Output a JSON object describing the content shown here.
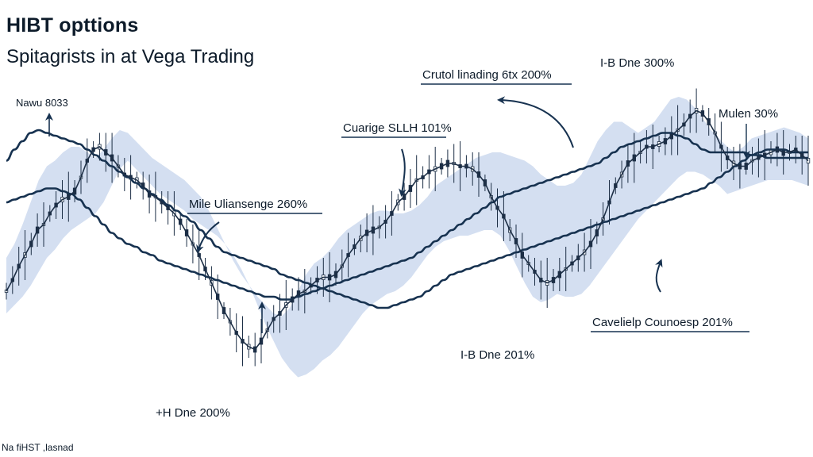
{
  "title": "HIBT opttions",
  "subtitle": "Spitagrists in at Vega Trading",
  "footer": "Na fiHST ,lasnad",
  "colors": {
    "band": "#cdd9ee",
    "line": "#173250",
    "candle": "#1d2f46",
    "text": "#0d1b2a"
  },
  "chart_data": {
    "type": "line",
    "title": "HIBT opttions",
    "subtitle": "Spitagrists in at Vega Trading",
    "xlabel": "",
    "ylabel": "",
    "grid": false,
    "legend": "none",
    "series": [
      {
        "role": "price",
        "values": [
          38,
          42,
          47,
          51,
          55,
          60,
          62,
          66,
          69,
          71,
          72,
          74,
          79,
          85,
          89,
          90,
          88,
          86,
          83,
          80,
          79,
          78,
          76,
          73,
          72,
          70,
          68,
          66,
          63,
          59,
          55,
          51,
          46,
          41,
          36,
          31,
          27,
          23,
          20,
          18,
          17,
          20,
          24,
          28,
          30,
          33,
          35,
          37,
          38,
          40,
          42,
          43,
          43,
          44,
          47,
          51,
          54,
          57,
          59,
          60,
          61,
          63,
          66,
          70,
          72,
          75,
          78,
          79,
          81,
          82,
          83,
          84,
          84,
          83,
          83,
          82,
          80,
          77,
          72,
          68,
          65,
          60,
          56,
          51,
          48,
          45,
          42,
          41,
          42,
          44,
          46,
          48,
          50,
          52,
          55,
          59,
          64,
          70,
          76,
          80,
          84,
          86,
          88,
          90,
          90,
          91,
          92,
          94,
          96,
          98,
          101,
          103,
          102,
          99,
          95,
          90,
          86,
          84,
          83,
          83,
          85,
          86,
          87,
          88,
          89,
          88,
          88,
          89,
          87,
          85
        ]
      },
      {
        "role": "upper-band",
        "values": [
          50,
          55,
          62,
          70,
          78,
          83,
          85,
          88,
          90,
          90,
          88,
          86,
          89,
          93,
          96,
          95,
          92,
          89,
          86,
          84,
          82,
          80,
          78,
          75,
          72,
          67,
          61,
          55,
          49,
          44,
          40,
          36,
          33,
          30,
          29,
          32,
          38,
          44,
          48,
          50,
          53,
          57,
          60,
          62,
          64,
          66,
          67,
          67,
          66,
          66,
          67,
          69,
          72,
          76,
          78,
          80,
          82,
          84,
          86,
          87,
          88,
          88,
          87,
          86,
          85,
          83,
          80,
          78,
          76,
          76,
          77,
          80,
          86,
          92,
          96,
          99,
          99,
          97,
          95,
          97,
          99,
          103,
          107,
          108,
          107,
          104,
          100,
          96,
          93,
          90,
          88,
          90,
          93,
          94,
          95,
          96,
          97,
          96,
          95,
          93
        ]
      },
      {
        "role": "lower-band",
        "values": [
          30,
          33,
          36,
          40,
          45,
          50,
          53,
          57,
          60,
          62,
          64,
          66,
          70,
          76,
          82,
          85,
          82,
          79,
          76,
          73,
          71,
          69,
          67,
          64,
          62,
          60,
          58,
          55,
          51,
          46,
          40,
          33,
          26,
          20,
          14,
          10,
          7,
          8,
          10,
          13,
          15,
          18,
          22,
          26,
          30,
          33,
          35,
          37,
          38,
          40,
          43,
          47,
          51,
          54,
          56,
          57,
          58,
          58,
          59,
          60,
          60,
          58,
          53,
          47,
          41,
          36,
          34,
          35,
          37,
          36,
          36,
          37,
          40,
          44,
          48,
          52,
          56,
          60,
          64,
          67,
          70,
          73,
          76,
          79,
          81,
          81,
          80,
          78,
          76,
          73,
          74,
          75,
          76,
          77,
          78,
          78,
          78,
          78,
          77,
          76
        ]
      },
      {
        "role": "average-1",
        "values": [
          70,
          71,
          72,
          73,
          74,
          75,
          75,
          74,
          73,
          71,
          68,
          65,
          62,
          59,
          57,
          55,
          54,
          52,
          51,
          49,
          48,
          47,
          46,
          45,
          44,
          43,
          42,
          41,
          40,
          39,
          38,
          37,
          36,
          36,
          35,
          35,
          36,
          37,
          38,
          39,
          40,
          41,
          42,
          43,
          44,
          45,
          46,
          47,
          48,
          49,
          50,
          52,
          54,
          56,
          58,
          60,
          62,
          64,
          66,
          68,
          70,
          72,
          73,
          74,
          75,
          76,
          77,
          78,
          79,
          80,
          81,
          82,
          83,
          84,
          86,
          88,
          90,
          91,
          92,
          93,
          94,
          95,
          95,
          94,
          93,
          91,
          89,
          88,
          88,
          88,
          88,
          88,
          87,
          87,
          86,
          86,
          86,
          86,
          86,
          86
        ]
      },
      {
        "role": "average-2",
        "values": [
          85,
          89,
          92,
          95,
          96,
          95,
          94,
          93,
          92,
          91,
          89,
          87,
          85,
          83,
          81,
          79,
          77,
          75,
          73,
          71,
          69,
          67,
          65,
          63,
          60,
          57,
          54,
          52,
          51,
          50,
          49,
          48,
          47,
          46,
          44,
          43,
          42,
          41,
          40,
          39,
          38,
          37,
          36,
          35,
          34,
          33,
          32,
          32,
          33,
          34,
          35,
          36,
          38,
          40,
          42,
          44,
          45,
          46,
          47,
          48,
          49,
          50,
          51,
          52,
          53,
          54,
          55,
          56,
          57,
          58,
          59,
          60,
          61,
          62,
          63,
          64,
          65,
          66,
          67,
          68,
          69,
          70,
          71,
          72,
          73,
          74,
          75,
          77,
          79,
          81,
          83,
          85,
          87,
          88,
          89,
          89,
          89,
          88,
          88,
          88
        ]
      }
    ],
    "ylim": [
      0,
      120
    ],
    "annotations": [
      {
        "label": "Nawu 8033",
        "series_index": 8,
        "arrow": "up"
      },
      {
        "label": "Crutol linading 6tx 200%",
        "arrow": "curved-left"
      },
      {
        "label": "Cuarige SLLH 101%",
        "arrow": "down",
        "boxed": true
      },
      {
        "label": "Mile Uliansenge 260%",
        "arrow": "curved-down",
        "boxed": true
      },
      {
        "label": "I-B Dne 300%",
        "arrow": "none"
      },
      {
        "label": "Mulen 30%",
        "arrow": "down"
      },
      {
        "label": "Cavelielp Counoesp 201%",
        "arrow": "up",
        "boxed": true
      },
      {
        "label": "I-B Dne 201%",
        "arrow": "none"
      },
      {
        "label": "+H Dne 200%",
        "arrow": "up"
      }
    ]
  }
}
